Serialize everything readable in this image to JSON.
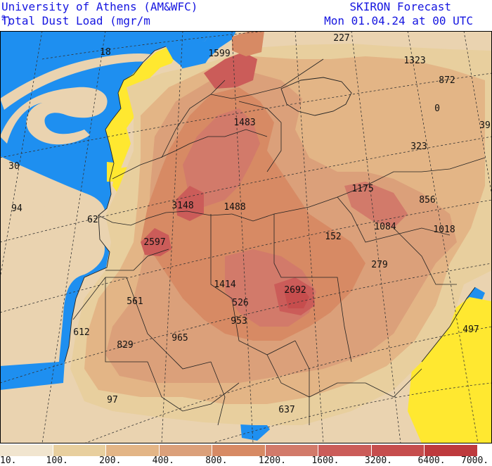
{
  "header": {
    "organization": "University of Athens (AM&WFC)",
    "variable": "Total Dust Load (mgr/m",
    "variable_sup": "2",
    "variable_end": ")",
    "model": "SKIRON Forecast",
    "valid_time": "Mon 01.04.24 at 00 UTC"
  },
  "colors": {
    "sea": "#1e8ff0",
    "low_dust_band": "#ffe830",
    "land_base": "#ead3b0",
    "border": "#222222",
    "grid": "#333333",
    "title": "#1515e0"
  },
  "map": {
    "values": [
      {
        "text": "227"
      },
      {
        "text": "1323"
      },
      {
        "text": "872"
      },
      {
        "text": "18"
      },
      {
        "text": "1599"
      },
      {
        "text": "0"
      },
      {
        "text": "1483"
      },
      {
        "text": "39"
      },
      {
        "text": "323"
      },
      {
        "text": "30"
      },
      {
        "text": "1175"
      },
      {
        "text": "856"
      },
      {
        "text": "3148"
      },
      {
        "text": "1488"
      },
      {
        "text": "94"
      },
      {
        "text": "62"
      },
      {
        "text": "1084"
      },
      {
        "text": "1018"
      },
      {
        "text": "152"
      },
      {
        "text": "2597"
      },
      {
        "text": "279"
      },
      {
        "text": "1414"
      },
      {
        "text": "2692"
      },
      {
        "text": "561"
      },
      {
        "text": "526"
      },
      {
        "text": "953"
      },
      {
        "text": "612"
      },
      {
        "text": "965"
      },
      {
        "text": "497"
      },
      {
        "text": "829"
      },
      {
        "text": "97"
      },
      {
        "text": "637"
      }
    ]
  },
  "legend": {
    "labels": [
      "10.",
      "100.",
      "200.",
      "400.",
      "800.",
      "1200.",
      "1600.",
      "3200.",
      "6400.",
      "7000."
    ],
    "colors": [
      "#f1e5cf",
      "#e8cf9e",
      "#e3b586",
      "#dba07a",
      "#d78a64",
      "#d27a6a",
      "#cb5c59",
      "#c64d4d",
      "#be3a3d"
    ]
  }
}
